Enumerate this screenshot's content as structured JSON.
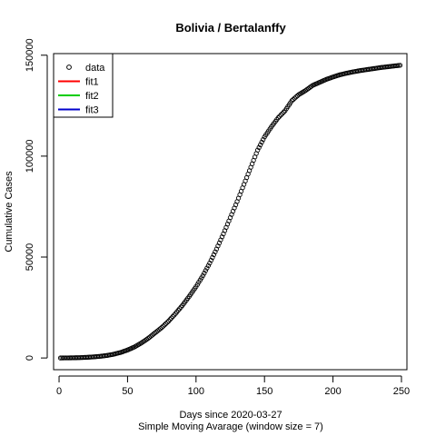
{
  "chart_data": {
    "type": "scatter",
    "title": "Bolivia / Bertalanffy",
    "xlabel": "Days since 2020-03-27",
    "subtitle": "Simple Moving Avarage (window size = 7)",
    "ylabel": "Cumulative Cases",
    "xlim": [
      -4,
      254
    ],
    "ylim": [
      -5800,
      150800
    ],
    "x_ticks": [
      0,
      50,
      100,
      150,
      200,
      250
    ],
    "x_tick_labels": [
      "0",
      "50",
      "100",
      "150",
      "200",
      "250"
    ],
    "y_ticks": [
      0,
      50000,
      100000,
      150000
    ],
    "y_tick_labels": [
      "0",
      "50000",
      "100000",
      "150000"
    ],
    "grid": false,
    "legend_position": "top-left",
    "legend": [
      {
        "label": "data",
        "kind": "point",
        "color": "#000000"
      },
      {
        "label": "fit1",
        "kind": "line",
        "color": "#ff0000"
      },
      {
        "label": "fit2",
        "kind": "line",
        "color": "#00cd00"
      },
      {
        "label": "fit3",
        "kind": "line",
        "color": "#0000cd"
      }
    ],
    "series": [
      {
        "name": "data",
        "marker": "open-circle",
        "color": "#000000",
        "points": [
          [
            1,
            20
          ],
          [
            5,
            45
          ],
          [
            10,
            95
          ],
          [
            15,
            170
          ],
          [
            20,
            330
          ],
          [
            25,
            530
          ],
          [
            30,
            830
          ],
          [
            35,
            1250
          ],
          [
            40,
            1880
          ],
          [
            45,
            2750
          ],
          [
            50,
            3950
          ],
          [
            55,
            5450
          ],
          [
            60,
            7400
          ],
          [
            65,
            9700
          ],
          [
            70,
            12400
          ],
          [
            75,
            15100
          ],
          [
            80,
            18300
          ],
          [
            85,
            22000
          ],
          [
            90,
            26000
          ],
          [
            95,
            30500
          ],
          [
            100,
            35300
          ],
          [
            105,
            40800
          ],
          [
            110,
            47000
          ],
          [
            115,
            54000
          ],
          [
            120,
            61500
          ],
          [
            125,
            69500
          ],
          [
            130,
            77500
          ],
          [
            135,
            86000
          ],
          [
            140,
            94500
          ],
          [
            145,
            103000
          ],
          [
            150,
            109500
          ],
          [
            155,
            114500
          ],
          [
            160,
            119000
          ],
          [
            165,
            122500
          ],
          [
            170,
            127500
          ],
          [
            175,
            130500
          ],
          [
            180,
            132500
          ],
          [
            185,
            135000
          ],
          [
            190,
            136500
          ],
          [
            195,
            138000
          ],
          [
            200,
            139200
          ],
          [
            205,
            140300
          ],
          [
            210,
            141100
          ],
          [
            215,
            141800
          ],
          [
            220,
            142400
          ],
          [
            225,
            142900
          ],
          [
            230,
            143400
          ],
          [
            235,
            143900
          ],
          [
            240,
            144300
          ],
          [
            245,
            144700
          ],
          [
            249,
            145000
          ]
        ]
      }
    ]
  }
}
